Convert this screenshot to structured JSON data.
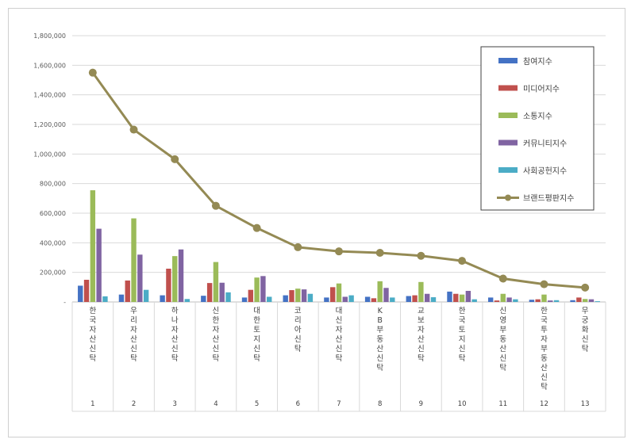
{
  "chart_data": {
    "type": "bar",
    "title": "",
    "xlabel": "",
    "ylabel": "",
    "ylim": [
      0,
      1800000
    ],
    "yticks": [
      0,
      200000,
      400000,
      600000,
      800000,
      1000000,
      1200000,
      1400000,
      1600000,
      1800000
    ],
    "ytick_labels": [
      "-",
      "200,000",
      "400,000",
      "600,000",
      "800,000",
      "1,000,000",
      "1,200,000",
      "1,400,000",
      "1,600,000",
      "1,800,000"
    ],
    "grid": true,
    "legend_position": "top-right",
    "categories": [
      "한국자산신탁",
      "우리자산신탁",
      "하나자산신탁",
      "신한자산신탁",
      "대한토지신탁",
      "코리아신탁",
      "대신자산신탁",
      "KB부동산신탁",
      "교보자산신탁",
      "한국토지신탁",
      "신영부동산신탁",
      "한국투자부동산신탁",
      "무궁화신탁"
    ],
    "ranks": [
      "1",
      "2",
      "3",
      "4",
      "5",
      "6",
      "7",
      "8",
      "9",
      "10",
      "11",
      "12",
      "13"
    ],
    "series": [
      {
        "name": "참여지수",
        "type": "bar",
        "color": "#4472c4",
        "values": [
          110000,
          50000,
          45000,
          42000,
          30000,
          45000,
          30000,
          35000,
          40000,
          70000,
          30000,
          15000,
          12000
        ]
      },
      {
        "name": "미디어지수",
        "type": "bar",
        "color": "#c0504d",
        "values": [
          150000,
          145000,
          225000,
          128000,
          82000,
          80000,
          100000,
          25000,
          45000,
          55000,
          10000,
          18000,
          30000
        ]
      },
      {
        "name": "소통지수",
        "type": "bar",
        "color": "#9bbb59",
        "values": [
          755000,
          565000,
          310000,
          270000,
          165000,
          90000,
          125000,
          140000,
          135000,
          50000,
          55000,
          50000,
          20000
        ]
      },
      {
        "name": "커뮤니티지수",
        "type": "bar",
        "color": "#8064a2",
        "values": [
          495000,
          320000,
          355000,
          130000,
          175000,
          85000,
          35000,
          95000,
          55000,
          75000,
          30000,
          10000,
          18000
        ]
      },
      {
        "name": "사회공헌지수",
        "type": "bar",
        "color": "#4bacc6",
        "values": [
          38000,
          82000,
          20000,
          65000,
          35000,
          55000,
          45000,
          30000,
          32000,
          18000,
          18000,
          12000,
          5000
        ]
      },
      {
        "name": "브랜드평판지수",
        "type": "line",
        "color": "#948a54",
        "values": [
          1550000,
          1165000,
          965000,
          650000,
          500000,
          370000,
          342000,
          332000,
          312000,
          278000,
          158000,
          120000,
          97000
        ]
      }
    ]
  }
}
